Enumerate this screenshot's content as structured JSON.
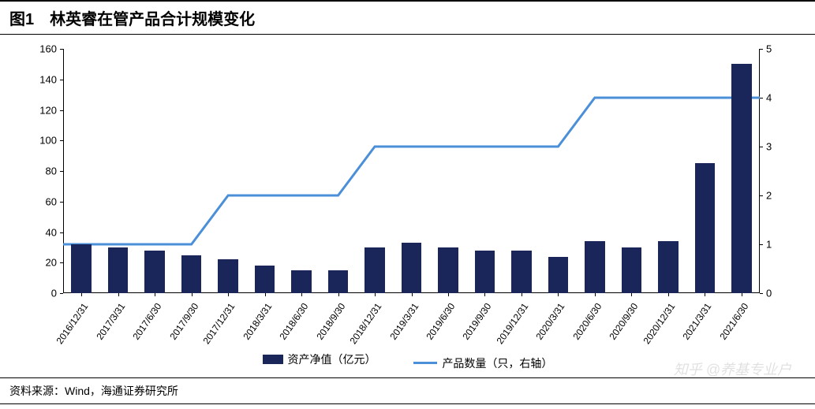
{
  "title": "图1　林英睿在管产品合计规模变化",
  "source": "资料来源：Wind，海通证券研究所",
  "watermark": "知乎 @养基专业户",
  "chart": {
    "type": "bar+line",
    "categories": [
      "2016/12/31",
      "2017/3/31",
      "2017/6/30",
      "2017/9/30",
      "2017/12/31",
      "2018/3/31",
      "2018/6/30",
      "2018/9/30",
      "2018/12/31",
      "2019/3/31",
      "2019/6/30",
      "2019/9/30",
      "2019/12/31",
      "2020/3/31",
      "2020/6/30",
      "2020/9/30",
      "2020/12/31",
      "2021/3/31",
      "2021/6/30"
    ],
    "bars": {
      "label": "资产净值（亿元）",
      "color": "#1a2659",
      "values": [
        32,
        30,
        28,
        25,
        22,
        18,
        15,
        15,
        30,
        33,
        30,
        28,
        28,
        24,
        34,
        30,
        34,
        85,
        150
      ],
      "axis": "left",
      "bar_width": 0.55
    },
    "line": {
      "label": "产品数量（只，右轴）",
      "color": "#4a8fd8",
      "values": [
        1,
        1,
        1,
        1,
        2,
        2,
        2,
        2,
        3,
        3,
        3,
        3,
        3,
        3,
        4,
        4,
        4,
        4,
        4
      ],
      "axis": "right",
      "line_width": 3
    },
    "left_axis": {
      "min": 0,
      "max": 160,
      "step": 20
    },
    "right_axis": {
      "min": 0,
      "max": 5,
      "step": 1
    },
    "background_color": "#ffffff",
    "axis_color": "#000000",
    "tick_fontsize": 13,
    "xlabel_fontsize": 12,
    "xlabel_rotation": -55
  },
  "legend": {
    "items": [
      {
        "key": "bar",
        "label": "资产净值（亿元）"
      },
      {
        "key": "line",
        "label": "产品数量（只，右轴）"
      }
    ]
  }
}
